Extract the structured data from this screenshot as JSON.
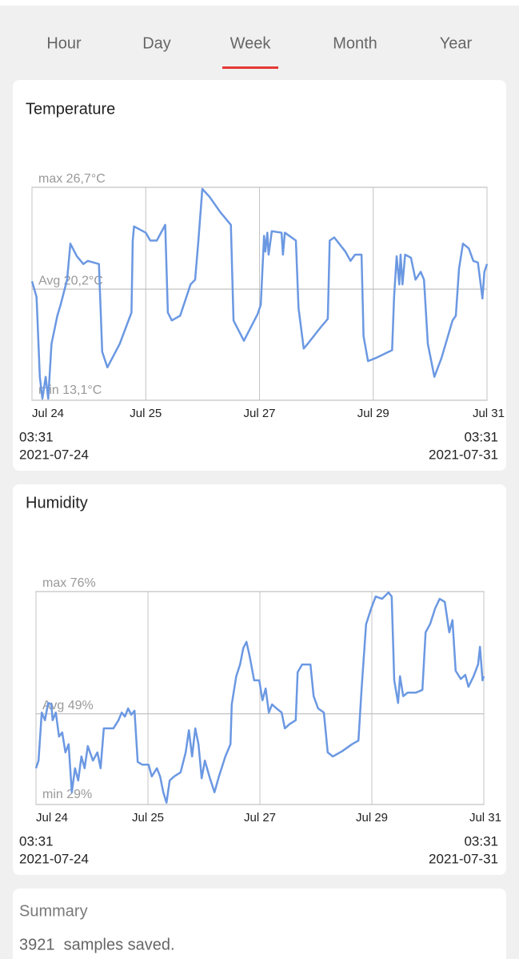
{
  "tabs": [
    "Hour",
    "Day",
    "Week",
    "Month",
    "Year"
  ],
  "selected_tab_index": 2,
  "chart_data": [
    {
      "type": "line",
      "title": "Temperature",
      "color": "#6b98e2",
      "x": [
        0,
        0.07,
        0.12,
        0.16,
        0.21,
        0.25,
        0.3,
        0.39,
        0.44,
        0.54,
        0.59,
        0.69,
        0.79,
        0.86,
        1.03,
        1.08,
        1.16,
        1.35,
        1.53,
        1.55,
        1.57,
        1.75,
        1.82,
        1.92,
        2.05,
        2.09,
        2.15,
        2.28,
        2.44,
        2.51,
        2.56,
        2.62,
        2.73,
        2.9,
        3.06,
        3.1,
        3.26,
        3.47,
        3.52,
        3.57,
        3.59,
        3.62,
        3.64,
        3.69,
        3.84,
        3.86,
        3.89,
        4.06,
        4.1,
        4.18,
        4.24,
        4.43,
        4.55,
        4.58,
        4.65,
        4.82,
        4.9,
        4.97,
        5.07,
        5.1,
        5.17,
        5.29,
        5.54,
        5.57,
        5.61,
        5.65,
        5.67,
        5.7,
        5.74,
        5.83,
        5.9,
        5.98,
        6.03,
        6.09,
        6.19,
        6.3,
        6.47,
        6.52,
        6.57,
        6.63,
        6.72,
        6.79,
        6.86,
        6.93,
        6.96,
        7
      ],
      "values": [
        20.7,
        19.7,
        14.6,
        13.2,
        14.6,
        13.2,
        16.7,
        18.5,
        19.2,
        20.8,
        23.1,
        22.3,
        21.8,
        22.0,
        21.8,
        16.2,
        15.2,
        16.7,
        18.7,
        23.3,
        24.2,
        23.8,
        23.3,
        23.3,
        24.3,
        18.7,
        18.2,
        18.5,
        20.5,
        20.8,
        23.3,
        26.6,
        26.1,
        25.1,
        24.3,
        18.2,
        16.9,
        18.6,
        19.2,
        23.6,
        22.6,
        23.8,
        22.4,
        23.9,
        23.8,
        22.4,
        23.8,
        23.3,
        19.0,
        16.4,
        16.7,
        17.7,
        18.3,
        23.3,
        23.5,
        22.6,
        22.0,
        22.4,
        22.4,
        17.2,
        15.6,
        15.8,
        16.3,
        19.7,
        22.3,
        20.5,
        22.4,
        20.5,
        22.4,
        22.2,
        20.8,
        21.3,
        20.8,
        16.7,
        14.6,
        15.8,
        18.2,
        18.5,
        21.5,
        23.1,
        22.8,
        22.0,
        21.9,
        19.6,
        21.3,
        21.8
      ],
      "xlim": [
        0,
        7
      ],
      "xticks": [
        {
          "value": 0,
          "label": "Jul 24"
        },
        {
          "value": 1.75,
          "label": "Jul 25"
        },
        {
          "value": 3.5,
          "label": "Jul 27"
        },
        {
          "value": 5.25,
          "label": "Jul 29"
        },
        {
          "value": 7,
          "label": "Jul 31"
        }
      ],
      "ylim": [
        13.1,
        26.7
      ],
      "yticks": [
        {
          "value": 26.7,
          "label": "max 26,7°C"
        },
        {
          "value": 20.2,
          "label": "Avg 20,2°C"
        },
        {
          "value": 13.1,
          "label": "min 13,1°C"
        }
      ],
      "start": {
        "time": "03:31",
        "date": "2021-07-24"
      },
      "end": {
        "time": "03:31",
        "date": "2021-07-31"
      }
    },
    {
      "type": "line",
      "title": "Humidity",
      "color": "#6b98e2",
      "x": [
        0,
        0.04,
        0.09,
        0.14,
        0.19,
        0.24,
        0.26,
        0.31,
        0.36,
        0.41,
        0.46,
        0.51,
        0.56,
        0.61,
        0.66,
        0.71,
        0.76,
        0.81,
        0.89,
        0.96,
        1.01,
        1.06,
        1.14,
        1.21,
        1.29,
        1.34,
        1.39,
        1.44,
        1.49,
        1.54,
        1.59,
        1.66,
        1.76,
        1.81,
        1.89,
        1.94,
        1.99,
        2.04,
        2.09,
        2.16,
        2.26,
        2.34,
        2.39,
        2.44,
        2.49,
        2.54,
        2.59,
        2.64,
        2.71,
        2.79,
        2.86,
        2.96,
        3.04,
        3.06,
        3.13,
        3.19,
        3.24,
        3.29,
        3.34,
        3.41,
        3.49,
        3.54,
        3.59,
        3.64,
        3.69,
        3.76,
        3.84,
        3.89,
        3.96,
        4.06,
        4.09,
        4.16,
        4.29,
        4.34,
        4.41,
        4.5,
        4.56,
        4.64,
        4.79,
        4.94,
        5.04,
        5.09,
        5.16,
        5.24,
        5.31,
        5.41,
        5.51,
        5.56,
        5.6,
        5.66,
        5.69,
        5.74,
        5.81,
        5.94,
        6.04,
        6.09,
        6.16,
        6.24,
        6.31,
        6.39,
        6.46,
        6.51,
        6.56,
        6.64,
        6.71,
        6.76,
        6.84,
        6.91,
        6.94,
        6.98,
        7
      ],
      "values": [
        37.0,
        38.7,
        49.3,
        47.6,
        51.4,
        51.1,
        47.6,
        49.3,
        44.0,
        44.9,
        40.5,
        42.3,
        31.7,
        37.0,
        34.3,
        39.6,
        37.0,
        41.9,
        38.7,
        40.5,
        37.0,
        45.8,
        45.8,
        45.8,
        47.6,
        49.3,
        48.4,
        50.2,
        48.8,
        49.7,
        38.4,
        37.8,
        37.8,
        35.2,
        37.0,
        35.2,
        31.7,
        29.4,
        34.3,
        35.2,
        36.1,
        40.5,
        45.4,
        39.6,
        45.8,
        42.3,
        34.8,
        38.7,
        35.2,
        31.7,
        35.2,
        39.6,
        42.3,
        51.1,
        57.3,
        59.9,
        63.5,
        64.9,
        61.7,
        56.4,
        56.4,
        52.0,
        54.6,
        49.3,
        51.1,
        50.2,
        49.3,
        45.8,
        46.7,
        47.6,
        58.2,
        59.9,
        59.9,
        52.9,
        50.2,
        49.3,
        40.5,
        39.6,
        40.8,
        42.3,
        43.1,
        54.6,
        68.8,
        72.3,
        74.9,
        74.4,
        75.8,
        74.9,
        56.4,
        51.4,
        57.3,
        52.9,
        53.7,
        53.7,
        54.3,
        67.0,
        68.8,
        72.3,
        74.4,
        73.7,
        67.0,
        69.7,
        58.5,
        56.7,
        57.6,
        55.0,
        57.3,
        59.9,
        63.8,
        56.4,
        57.3
      ],
      "xlim": [
        0,
        7
      ],
      "xticks": [
        {
          "value": 0,
          "label": "Jul 24"
        },
        {
          "value": 1.75,
          "label": "Jul 25"
        },
        {
          "value": 3.5,
          "label": "Jul 27"
        },
        {
          "value": 5.25,
          "label": "Jul 29"
        },
        {
          "value": 7,
          "label": "Jul 31"
        }
      ],
      "ylim": [
        29,
        76
      ],
      "yticks": [
        {
          "value": 76,
          "label": "max 76%"
        },
        {
          "value": 49,
          "label": "Avg 49%"
        },
        {
          "value": 29,
          "label": "min 29%"
        }
      ],
      "start": {
        "time": "03:31",
        "date": "2021-07-24"
      },
      "end": {
        "time": "03:31",
        "date": "2021-07-31"
      }
    }
  ],
  "summary": {
    "title": "Summary",
    "text": "3921  samples saved."
  }
}
